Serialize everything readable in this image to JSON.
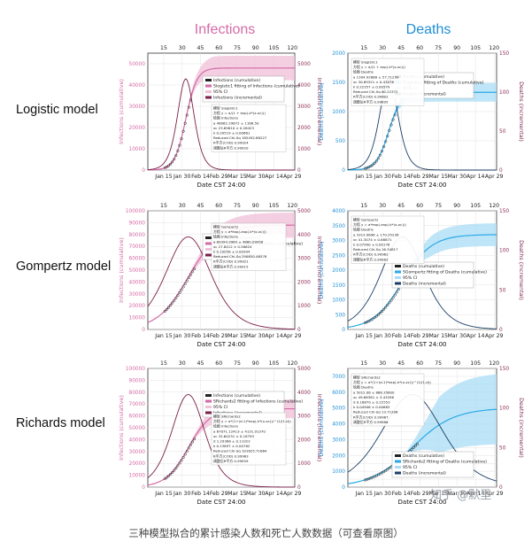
{
  "col_titles": {
    "infections": "Infections",
    "deaths": "Deaths"
  },
  "row_titles": [
    "Logistic model",
    "Gompertz model",
    "Richards model"
  ],
  "axis_text": {
    "xlabel": "Date CST 24:00",
    "infections_left": "Infections (cumulative)",
    "infections_right": "Infections (incremental)",
    "deaths_left": "Deaths (cumulative)",
    "deaths_right": "Deaths (incremental)"
  },
  "top_ticks": [
    "15",
    "30",
    "45",
    "60",
    "75",
    "90",
    "105",
    "120"
  ],
  "date_ticks": [
    "Jan 15",
    "Jan 30",
    "Feb 14",
    "Feb 29",
    "Mar 15",
    "Mar 30",
    "Apr 14",
    "Apr 29"
  ],
  "caption": "三种模型拟合的累计感染人数和死亡人数数据（可查看原图）",
  "watermark": "知乎 @默里",
  "colors": {
    "infections_title": "#d56aa6",
    "deaths_title": "#1f8fd6",
    "infections_fit": "#d36aa5",
    "infections_band": "#f0bfd8",
    "deaths_fit": "#29a9e6",
    "deaths_band": "#a9dcf5",
    "incremental": "#7a1f4a",
    "deaths_incremental": "#1d3f66"
  },
  "chart_data": [
    {
      "type": "line",
      "model": "Logistic",
      "panel": "Infections",
      "x_ticks": [
        "Jan 15",
        "Jan 30",
        "Feb 14",
        "Feb 29",
        "Mar 15",
        "Mar 30",
        "Apr 14",
        "Apr 29"
      ],
      "top_x_ticks": [
        15,
        30,
        45,
        60,
        75,
        90,
        105,
        120
      ],
      "ylim_left": [
        0,
        55000
      ],
      "yticks_left": [
        0,
        10000,
        20000,
        30000,
        40000,
        50000
      ],
      "ylim_right": [
        0,
        5500
      ],
      "yticks_right": [
        0,
        1000,
        2000,
        3000,
        4000,
        5000
      ],
      "fit": {
        "K": 48000,
        "r": 0.22,
        "t0": 31
      },
      "cum_fit": 48000,
      "cum_peak_day": 31,
      "legend": [
        "Infections (cumulative)",
        "Slogistic1 fitting of Infections (cumulative)",
        "95% CI",
        "Infections (incremental)"
      ],
      "fit_table": [
        "模型 Slogistic1",
        "方程 y = a/(1 + exp(-k*(x-xc)))",
        "绘图 Infections",
        "a 48062.29672 ± 1166.50",
        "xc 23.69610 ± 0.26423",
        "k 0.20519 ± 0.00661",
        "Reduced Chi-Sq 185492.88227",
        "R平方(COD) 0.99924",
        "调整后R平方 0.99920"
      ]
    },
    {
      "type": "line",
      "model": "Logistic",
      "panel": "Deaths",
      "x_ticks": [
        "Jan 15",
        "Jan 30",
        "Feb 14",
        "Feb 29",
        "Mar 15",
        "Mar 30",
        "Apr 14",
        "Apr 29"
      ],
      "top_x_ticks": [
        15,
        30,
        45,
        60,
        75,
        90,
        105,
        120
      ],
      "ylim_left": [
        0,
        2000
      ],
      "yticks_left": [
        0,
        500,
        1000,
        1500,
        2000
      ],
      "ylim_right": [
        0,
        150
      ],
      "yticks_right": [
        0,
        50,
        100,
        150
      ],
      "fit": {
        "K": 1330,
        "r": 0.2,
        "t0": 33
      },
      "cum_fit": 1330,
      "cum_peak_day": 33,
      "legend": [
        "Deaths (cumulative)",
        "Slogistic1 fitting of Deaths (cumulative)",
        "95% CI",
        "Deaths (incremental)"
      ],
      "fit_table": [
        "模型 Slogistic1",
        "方程 y = a/(1 + exp(-k*(x-xc)))",
        "绘图 Deaths",
        "a 1304.92868 ± 57.71230",
        "xc 30.89321 ± 0.43076",
        "k 0.22357 ± 0.00579",
        "Reduced Chi-Sq 60.22372",
        "R平方(COD) 0.99602",
        "调整后R平方 0.99895"
      ]
    },
    {
      "type": "line",
      "model": "Gompertz",
      "panel": "Infections",
      "x_ticks": [
        "Jan 15",
        "Jan 30",
        "Feb 14",
        "Feb 29",
        "Mar 15",
        "Mar 30",
        "Apr 14",
        "Apr 29"
      ],
      "top_x_ticks": [
        15,
        30,
        45,
        60,
        75,
        90,
        105,
        120
      ],
      "ylim_left": [
        0,
        100000
      ],
      "yticks_left": [
        0,
        10000,
        20000,
        30000,
        40000,
        50000,
        60000,
        70000,
        80000,
        90000,
        100000
      ],
      "ylim_right": [
        0,
        5000
      ],
      "yticks_right": [
        0,
        1000,
        2000,
        3000,
        4000,
        5000
      ],
      "fit": {
        "K": 88000,
        "r": 0.08,
        "t0": 33
      },
      "cum_fit": 88000,
      "cum_peak_day": 33,
      "legend": [
        "Infections (cumulative)",
        "SGompertz fitting of Infections (cumulative)",
        "95% CI",
        "Infections (incremental)"
      ],
      "fit_table": [
        "模型 Gompertz",
        "方程 y = a*exp(-exp(-k*(x-xc)))",
        "绘图 Infections",
        "a 89394.9964 ± 4880.09958",
        "xc 27.8412 ± 0.56624",
        "k 0.10058 ± 0.00304",
        "Reduced Chi-Sq 290650.46578",
        "R平方(COD) 0.99921",
        "调整后R平方 0.99915"
      ]
    },
    {
      "type": "line",
      "model": "Gompertz",
      "panel": "Deaths",
      "x_ticks": [
        "Jan 15",
        "Jan 30",
        "Feb 14",
        "Feb 29",
        "Mar 15",
        "Mar 30",
        "Apr 14",
        "Apr 29"
      ],
      "top_x_ticks": [
        15,
        30,
        45,
        60,
        75,
        90,
        105,
        120
      ],
      "ylim_left": [
        0,
        4000
      ],
      "yticks_left": [
        0,
        500,
        1000,
        1500,
        2000,
        2500,
        3000,
        3500,
        4000
      ],
      "ylim_right": [
        0,
        150
      ],
      "yticks_right": [
        0,
        50,
        100,
        150
      ],
      "fit": {
        "K": 3200,
        "r": 0.085,
        "t0": 44
      },
      "cum_fit": 3200,
      "cum_peak_day": 44,
      "legend": [
        "Deaths (cumulative)",
        "SGompertz fitting of Deaths (cumulative)",
        "95% CI",
        "Deaths (incremental)"
      ],
      "fit_table": [
        "模型 Gompertz",
        "方程 y = a*exp(-exp(-k*(x-xc)))",
        "绘图 Deaths",
        "a 3313.9696 ± 170.35236",
        "xc 41.3074 ± 0.68871",
        "k 0.07990 ± 0.00176",
        "Reduced Chi-Sq 16.34817",
        "R平方(COD) 0.99962",
        "调整后R平方 0.99963"
      ]
    },
    {
      "type": "line",
      "model": "Richards",
      "panel": "Infections",
      "x_ticks": [
        "Jan 15",
        "Jan 30",
        "Feb 14",
        "Feb 29",
        "Mar 15",
        "Mar 30",
        "Apr 14",
        "Apr 29"
      ],
      "top_x_ticks": [
        15,
        30,
        45,
        60,
        75,
        90,
        105,
        120
      ],
      "ylim_left": [
        0,
        100000
      ],
      "yticks_left": [
        0,
        10000,
        20000,
        30000,
        40000,
        50000,
        60000,
        70000,
        80000,
        90000,
        100000
      ],
      "ylim_right": [
        0,
        5000
      ],
      "yticks_right": [
        0,
        1000,
        2000,
        3000,
        4000,
        5000
      ],
      "fit": {
        "K": 66000,
        "r": 0.11,
        "t0": 33
      },
      "cum_fit": 66000,
      "cum_peak_day": 33,
      "legend": [
        "Infections (cumulative)",
        "SRichards2 fitting of Infections (cumulative)",
        "95% CI",
        "Infections (incremental)"
      ],
      "fit_table": [
        "模型 SRichards2",
        "方程 y = a*(1+(d-1)*exp(-k*(x-xc)))^(1/(1-d))",
        "绘图 Infections",
        "a 67071.12413 ± 4131.91370",
        "xc 32.60231 ± 0.18793",
        "d 1.29386 ± 0.11023",
        "k 0.13897 ± 0.00762",
        "Reduced Chi-Sq 101625.71664",
        "R平方(COD) 0.99963",
        "调整后R平方 0.99959"
      ]
    },
    {
      "type": "line",
      "model": "Richards",
      "panel": "Deaths",
      "x_ticks": [
        "Jan 15",
        "Jan 30",
        "Feb 14",
        "Feb 29",
        "Mar 15",
        "Mar 30",
        "Apr 14",
        "Apr 29"
      ],
      "top_x_ticks": [
        15,
        30,
        45,
        60,
        75,
        90,
        105,
        120
      ],
      "ylim_left": [
        0,
        7500
      ],
      "yticks_left": [
        0,
        500,
        1000,
        1500,
        2000,
        2500,
        3000,
        3500,
        4000,
        4500,
        5000,
        5500,
        6000,
        6500,
        7000,
        7500
      ],
      "ylim_right": [
        0,
        150
      ],
      "yticks_right": [
        0,
        50,
        100,
        150
      ],
      "fit": {
        "K": 5000,
        "r": 0.06,
        "t0": 52
      },
      "cum_fit": 5000,
      "cum_peak_day": 52,
      "legend": [
        "Deaths (cumulative)",
        "SRichards2 fitting of Deaths (cumulative)",
        "95% CI",
        "Deaths (incremental)"
      ],
      "fit_table": [
        "模型 SRichards2",
        "方程 y = a*(1+(d-1)*exp(-k*(x-xc)))^(1/(1-d))",
        "绘图 Deaths",
        "a 5012.06 ± 888.35600",
        "xc 49.68381 ± 3.43296",
        "d 0.16870 ± 0.22553",
        "k 0.04906 ± 0.00683",
        "Reduced Chi-Sq 13.71296",
        "R平方(COD) 0.99987",
        "调整后R平方 0.99986"
      ]
    }
  ]
}
